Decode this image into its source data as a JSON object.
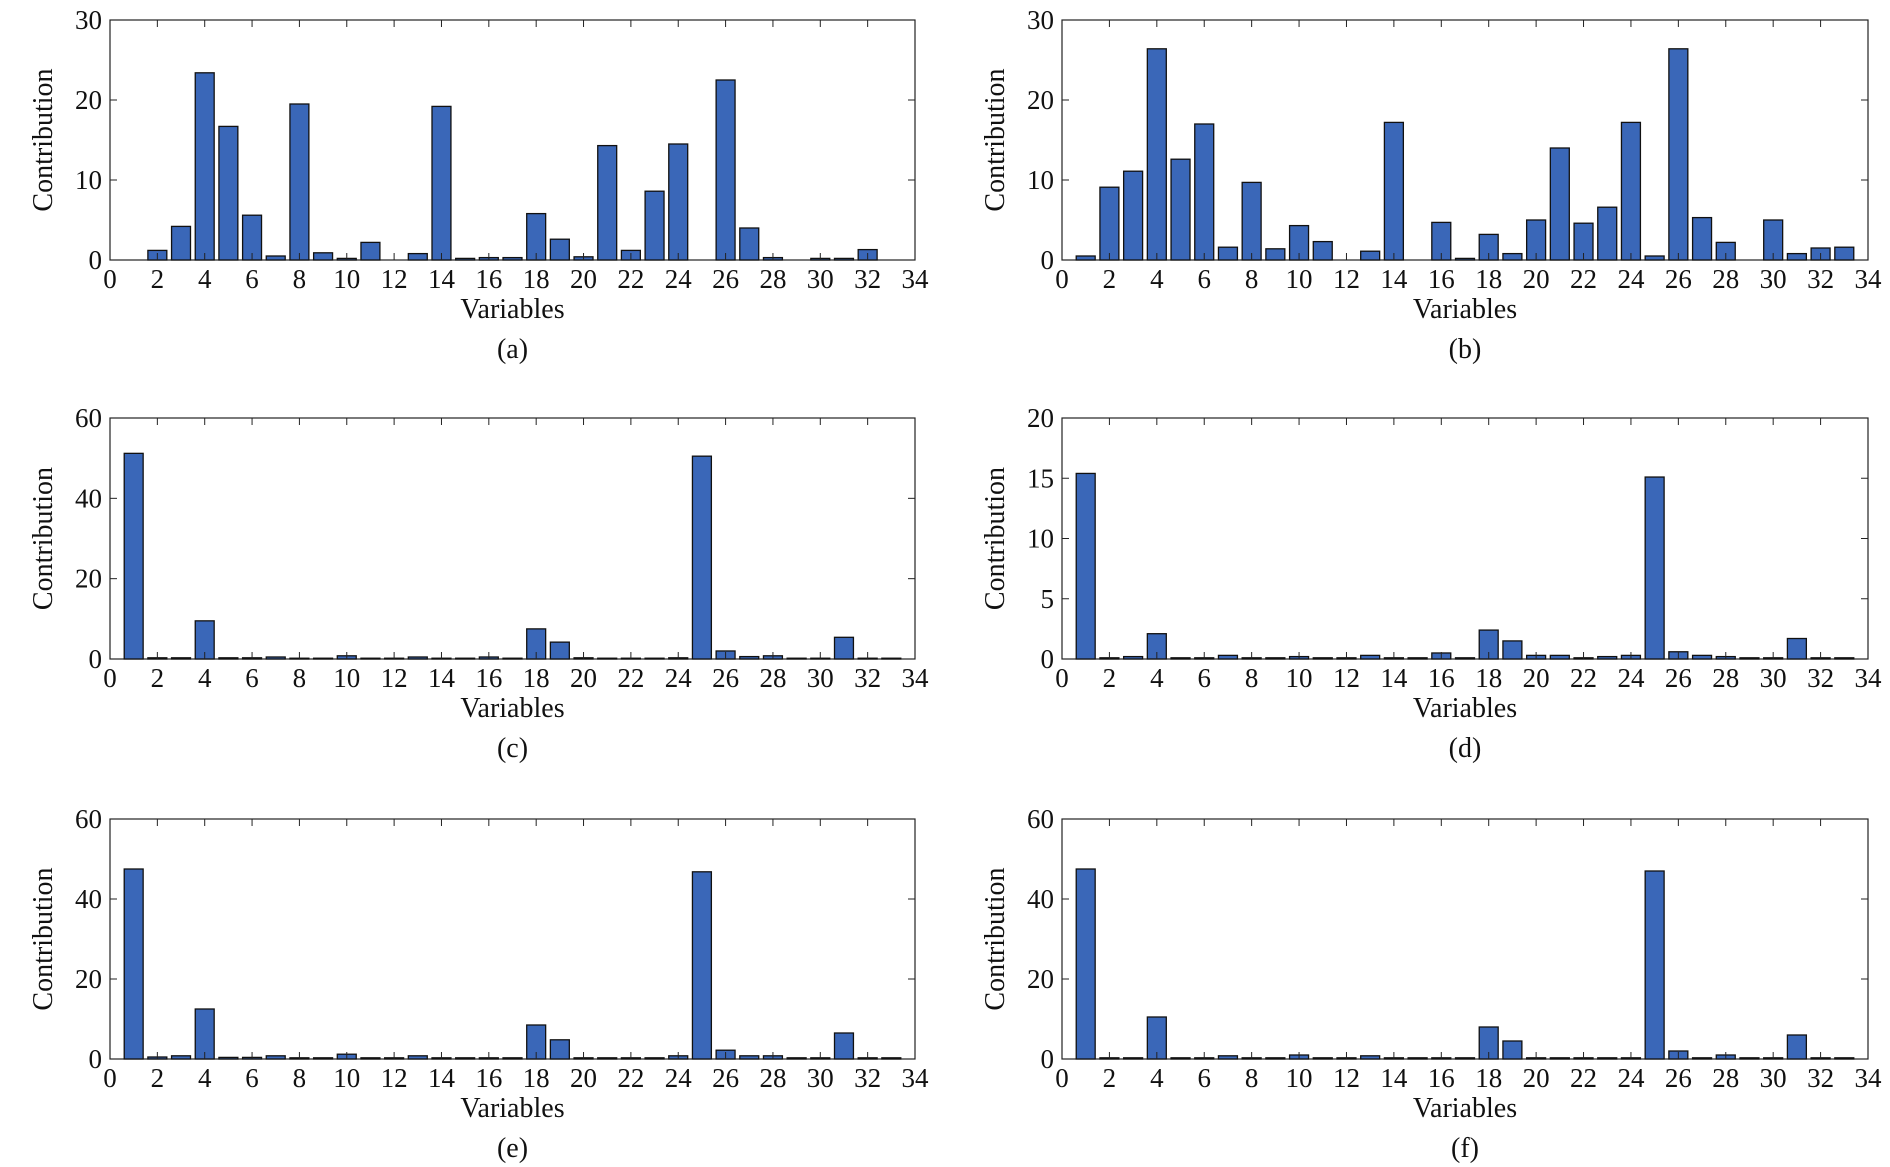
{
  "figure": {
    "bar_color": "#3a67b8",
    "bar_edge_color": "#111111"
  },
  "chart_data": [
    {
      "type": "bar",
      "caption": "(a)",
      "xlabel": "Variables",
      "ylabel": "Contribution",
      "xlim": [
        0,
        34
      ],
      "ylim": [
        0,
        30
      ],
      "xticks": [
        0,
        2,
        4,
        6,
        8,
        10,
        12,
        14,
        16,
        18,
        20,
        22,
        24,
        26,
        28,
        30,
        32,
        34
      ],
      "yticks": [
        0,
        10,
        20,
        30
      ],
      "x": [
        1,
        2,
        3,
        4,
        5,
        6,
        7,
        8,
        9,
        10,
        11,
        12,
        13,
        14,
        15,
        16,
        17,
        18,
        19,
        20,
        21,
        22,
        23,
        24,
        25,
        26,
        27,
        28,
        29,
        30,
        31,
        32,
        33
      ],
      "values": [
        0,
        1.2,
        4.2,
        23.4,
        16.7,
        5.6,
        0.5,
        19.5,
        0.9,
        0.2,
        2.2,
        0,
        0.8,
        19.2,
        0.2,
        0.3,
        0.3,
        5.8,
        2.6,
        0.4,
        14.3,
        1.2,
        8.6,
        14.5,
        0,
        22.5,
        4.0,
        0.3,
        0,
        0.2,
        0.2,
        1.3,
        0
      ],
      "grid": false
    },
    {
      "type": "bar",
      "caption": "(b)",
      "xlabel": "Variables",
      "ylabel": "Contribution",
      "xlim": [
        0,
        34
      ],
      "ylim": [
        0,
        30
      ],
      "xticks": [
        0,
        2,
        4,
        6,
        8,
        10,
        12,
        14,
        16,
        18,
        20,
        22,
        24,
        26,
        28,
        30,
        32,
        34
      ],
      "yticks": [
        0,
        10,
        20,
        30
      ],
      "x": [
        1,
        2,
        3,
        4,
        5,
        6,
        7,
        8,
        9,
        10,
        11,
        12,
        13,
        14,
        15,
        16,
        17,
        18,
        19,
        20,
        21,
        22,
        23,
        24,
        25,
        26,
        27,
        28,
        29,
        30,
        31,
        32,
        33
      ],
      "values": [
        0.5,
        9.1,
        11.1,
        26.4,
        12.6,
        17.0,
        1.6,
        9.7,
        1.4,
        4.3,
        2.3,
        0,
        1.1,
        17.2,
        0,
        4.7,
        0.2,
        3.2,
        0.8,
        5.0,
        14.0,
        4.6,
        6.6,
        17.2,
        0.5,
        26.4,
        5.3,
        2.2,
        0,
        5.0,
        0.8,
        1.5,
        1.6
      ],
      "grid": false
    },
    {
      "type": "bar",
      "caption": "(c)",
      "xlabel": "Variables",
      "ylabel": "Contribution",
      "xlim": [
        0,
        34
      ],
      "ylim": [
        0,
        60
      ],
      "xticks": [
        0,
        2,
        4,
        6,
        8,
        10,
        12,
        14,
        16,
        18,
        20,
        22,
        24,
        26,
        28,
        30,
        32,
        34
      ],
      "yticks": [
        0,
        20,
        40,
        60
      ],
      "x": [
        1,
        2,
        3,
        4,
        5,
        6,
        7,
        8,
        9,
        10,
        11,
        12,
        13,
        14,
        15,
        16,
        17,
        18,
        19,
        20,
        21,
        22,
        23,
        24,
        25,
        26,
        27,
        28,
        29,
        30,
        31,
        32,
        33
      ],
      "values": [
        51.2,
        0.3,
        0.3,
        9.5,
        0.3,
        0.3,
        0.5,
        0.2,
        0.2,
        0.8,
        0.2,
        0.2,
        0.5,
        0.2,
        0.2,
        0.5,
        0.2,
        7.5,
        4.2,
        0.3,
        0.2,
        0.2,
        0.2,
        0.3,
        50.5,
        2.0,
        0.6,
        0.8,
        0.2,
        0.2,
        5.4,
        0.2,
        0.2
      ],
      "grid": false
    },
    {
      "type": "bar",
      "caption": "(d)",
      "xlabel": "Variables",
      "ylabel": "Contribution",
      "xlim": [
        0,
        34
      ],
      "ylim": [
        0,
        20
      ],
      "xticks": [
        0,
        2,
        4,
        6,
        8,
        10,
        12,
        14,
        16,
        18,
        20,
        22,
        24,
        26,
        28,
        30,
        32,
        34
      ],
      "yticks": [
        0,
        5,
        10,
        15,
        20
      ],
      "x": [
        1,
        2,
        3,
        4,
        5,
        6,
        7,
        8,
        9,
        10,
        11,
        12,
        13,
        14,
        15,
        16,
        17,
        18,
        19,
        20,
        21,
        22,
        23,
        24,
        25,
        26,
        27,
        28,
        29,
        30,
        31,
        32,
        33
      ],
      "values": [
        15.4,
        0.1,
        0.2,
        2.1,
        0.1,
        0.1,
        0.3,
        0.1,
        0.1,
        0.2,
        0.1,
        0.1,
        0.3,
        0.1,
        0.1,
        0.5,
        0.1,
        2.4,
        1.5,
        0.3,
        0.3,
        0.1,
        0.2,
        0.3,
        15.1,
        0.6,
        0.3,
        0.2,
        0.1,
        0.1,
        1.7,
        0.1,
        0.1
      ],
      "grid": false
    },
    {
      "type": "bar",
      "caption": "(e)",
      "xlabel": "Variables",
      "ylabel": "Contribution",
      "xlim": [
        0,
        34
      ],
      "ylim": [
        0,
        60
      ],
      "xticks": [
        0,
        2,
        4,
        6,
        8,
        10,
        12,
        14,
        16,
        18,
        20,
        22,
        24,
        26,
        28,
        30,
        32,
        34
      ],
      "yticks": [
        0,
        20,
        40,
        60
      ],
      "x": [
        1,
        2,
        3,
        4,
        5,
        6,
        7,
        8,
        9,
        10,
        11,
        12,
        13,
        14,
        15,
        16,
        17,
        18,
        19,
        20,
        21,
        22,
        23,
        24,
        25,
        26,
        27,
        28,
        29,
        30,
        31,
        32,
        33
      ],
      "values": [
        47.5,
        0.5,
        0.8,
        12.5,
        0.4,
        0.4,
        0.8,
        0.3,
        0.3,
        1.2,
        0.3,
        0.3,
        0.8,
        0.3,
        0.3,
        0.3,
        0.3,
        8.5,
        4.8,
        0.3,
        0.3,
        0.3,
        0.3,
        0.8,
        46.8,
        2.2,
        0.8,
        0.8,
        0.3,
        0.3,
        6.5,
        0.3,
        0.3
      ],
      "grid": false
    },
    {
      "type": "bar",
      "caption": "(f)",
      "xlabel": "Variables",
      "ylabel": "Contribution",
      "xlim": [
        0,
        34
      ],
      "ylim": [
        0,
        60
      ],
      "xticks": [
        0,
        2,
        4,
        6,
        8,
        10,
        12,
        14,
        16,
        18,
        20,
        22,
        24,
        26,
        28,
        30,
        32,
        34
      ],
      "yticks": [
        0,
        20,
        40,
        60
      ],
      "x": [
        1,
        2,
        3,
        4,
        5,
        6,
        7,
        8,
        9,
        10,
        11,
        12,
        13,
        14,
        15,
        16,
        17,
        18,
        19,
        20,
        21,
        22,
        23,
        24,
        25,
        26,
        27,
        28,
        29,
        30,
        31,
        32,
        33
      ],
      "values": [
        47.5,
        0.3,
        0.3,
        10.5,
        0.3,
        0.3,
        0.8,
        0.3,
        0.3,
        1.0,
        0.3,
        0.3,
        0.8,
        0.3,
        0.3,
        0.3,
        0.3,
        8.0,
        4.5,
        0.3,
        0.3,
        0.3,
        0.3,
        0.3,
        47.0,
        2.0,
        0.3,
        1.0,
        0.3,
        0.3,
        6.0,
        0.3,
        0.3
      ],
      "grid": false
    }
  ]
}
